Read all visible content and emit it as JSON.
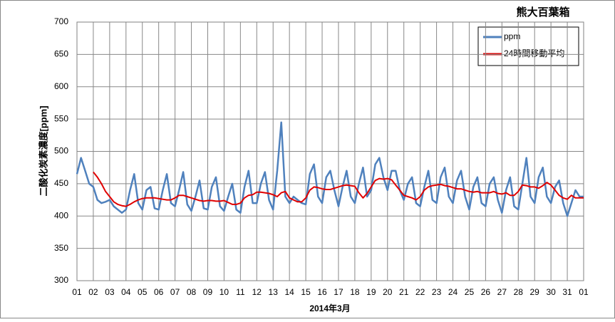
{
  "chart_data": {
    "type": "line",
    "title": "熊大百葉箱",
    "xlabel": "2014年3月",
    "ylabel": "二酸化炭素濃度[ppm]",
    "legend": "top-right",
    "grid": true,
    "xlim": [
      1,
      32
    ],
    "ylim": [
      300,
      700
    ],
    "yticks": [
      300,
      350,
      400,
      450,
      500,
      550,
      600,
      650,
      700
    ],
    "xticks": [
      {
        "value": 1,
        "label": "01"
      },
      {
        "value": 2,
        "label": "02"
      },
      {
        "value": 3,
        "label": "03"
      },
      {
        "value": 4,
        "label": "04"
      },
      {
        "value": 5,
        "label": "05"
      },
      {
        "value": 6,
        "label": "06"
      },
      {
        "value": 7,
        "label": "07"
      },
      {
        "value": 8,
        "label": "08"
      },
      {
        "value": 9,
        "label": "09"
      },
      {
        "value": 10,
        "label": "10"
      },
      {
        "value": 11,
        "label": "11"
      },
      {
        "value": 12,
        "label": "12"
      },
      {
        "value": 13,
        "label": "13"
      },
      {
        "value": 14,
        "label": "14"
      },
      {
        "value": 15,
        "label": "15"
      },
      {
        "value": 16,
        "label": "16"
      },
      {
        "value": 17,
        "label": "17"
      },
      {
        "value": 18,
        "label": "18"
      },
      {
        "value": 19,
        "label": "19"
      },
      {
        "value": 20,
        "label": "20"
      },
      {
        "value": 21,
        "label": "21"
      },
      {
        "value": 22,
        "label": "22"
      },
      {
        "value": 23,
        "label": "23"
      },
      {
        "value": 24,
        "label": "24"
      },
      {
        "value": 25,
        "label": "25"
      },
      {
        "value": 26,
        "label": "26"
      },
      {
        "value": 27,
        "label": "27"
      },
      {
        "value": 28,
        "label": "28"
      },
      {
        "value": 29,
        "label": "29"
      },
      {
        "value": 30,
        "label": "30"
      },
      {
        "value": 31,
        "label": "31"
      },
      {
        "value": 32,
        "label": "01"
      }
    ],
    "x": [
      1,
      1.25,
      1.5,
      1.75,
      2,
      2.25,
      2.5,
      2.75,
      3,
      3.25,
      3.5,
      3.75,
      4,
      4.25,
      4.5,
      4.75,
      5,
      5.25,
      5.5,
      5.75,
      6,
      6.25,
      6.5,
      6.75,
      7,
      7.25,
      7.5,
      7.75,
      8,
      8.25,
      8.5,
      8.75,
      9,
      9.25,
      9.5,
      9.75,
      10,
      10.25,
      10.5,
      10.75,
      11,
      11.25,
      11.5,
      11.75,
      12,
      12.25,
      12.5,
      12.75,
      13,
      13.25,
      13.5,
      13.75,
      14,
      14.25,
      14.5,
      14.75,
      15,
      15.25,
      15.5,
      15.75,
      16,
      16.25,
      16.5,
      16.75,
      17,
      17.25,
      17.5,
      17.75,
      18,
      18.25,
      18.5,
      18.75,
      19,
      19.25,
      19.5,
      19.75,
      20,
      20.25,
      20.5,
      20.75,
      21,
      21.25,
      21.5,
      21.75,
      22,
      22.25,
      22.5,
      22.75,
      23,
      23.25,
      23.5,
      23.75,
      24,
      24.25,
      24.5,
      24.75,
      25,
      25.25,
      25.5,
      25.75,
      26,
      26.25,
      26.5,
      26.75,
      27,
      27.25,
      27.5,
      27.75,
      28,
      28.25,
      28.5,
      28.75,
      29,
      29.25,
      29.5,
      29.75,
      30,
      30.25,
      30.5,
      30.75,
      31,
      31.25,
      31.5,
      31.75,
      32
    ],
    "series": [
      {
        "name": "ppm",
        "color": "#4f81bd",
        "values": [
          465,
          490,
          470,
          450,
          445,
          425,
          420,
          422,
          425,
          415,
          410,
          405,
          410,
          440,
          465,
          420,
          410,
          440,
          445,
          412,
          410,
          440,
          465,
          420,
          415,
          440,
          468,
          418,
          408,
          430,
          455,
          412,
          410,
          445,
          460,
          415,
          408,
          430,
          450,
          410,
          405,
          445,
          470,
          420,
          420,
          450,
          468,
          425,
          410,
          470,
          545,
          430,
          420,
          430,
          425,
          420,
          418,
          465,
          480,
          430,
          420,
          460,
          470,
          440,
          415,
          445,
          470,
          430,
          420,
          450,
          475,
          430,
          440,
          480,
          490,
          460,
          440,
          470,
          470,
          440,
          425,
          450,
          460,
          420,
          415,
          445,
          470,
          425,
          420,
          460,
          475,
          430,
          420,
          455,
          470,
          430,
          410,
          445,
          460,
          420,
          415,
          450,
          460,
          425,
          405,
          440,
          460,
          415,
          410,
          450,
          490,
          430,
          420,
          460,
          475,
          430,
          420,
          445,
          455,
          420,
          400,
          420,
          440,
          430,
          430
        ]
      },
      {
        "name": "24時間移動平均",
        "color": "#e00000",
        "values": [
          null,
          null,
          null,
          null,
          468,
          460,
          450,
          438,
          430,
          422,
          418,
          416,
          415,
          418,
          422,
          425,
          427,
          428,
          428,
          428,
          427,
          426,
          425,
          425,
          428,
          432,
          432,
          430,
          428,
          426,
          424,
          423,
          424,
          424,
          423,
          423,
          424,
          421,
          418,
          418,
          420,
          428,
          432,
          433,
          437,
          437,
          436,
          435,
          433,
          430,
          436,
          438,
          428,
          425,
          422,
          422,
          428,
          440,
          445,
          444,
          442,
          441,
          441,
          443,
          445,
          447,
          448,
          447,
          446,
          436,
          428,
          435,
          445,
          455,
          458,
          457,
          458,
          456,
          448,
          440,
          432,
          430,
          428,
          425,
          430,
          440,
          445,
          447,
          448,
          449,
          447,
          446,
          444,
          442,
          442,
          440,
          438,
          437,
          438,
          436,
          436,
          436,
          438,
          435,
          434,
          436,
          432,
          432,
          438,
          448,
          447,
          445,
          445,
          443,
          447,
          452,
          448,
          440,
          432,
          428,
          426,
          432,
          428,
          428,
          428
        ]
      }
    ]
  }
}
